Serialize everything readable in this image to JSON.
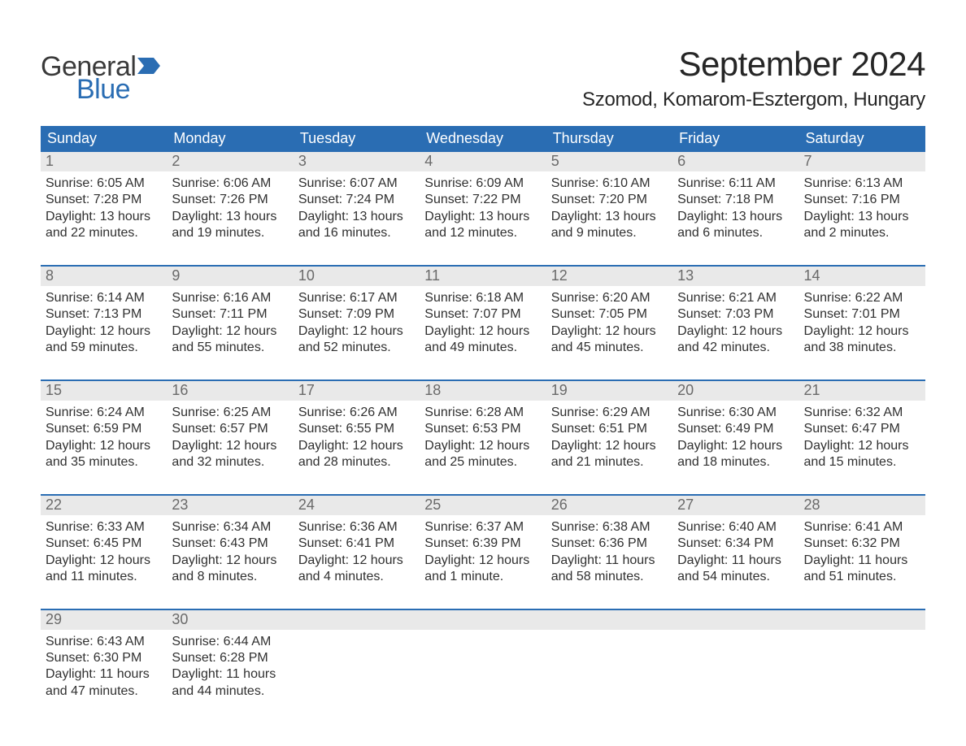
{
  "brand": {
    "general": "General",
    "blue": "Blue",
    "flag_color": "#2a6db3"
  },
  "title": "September 2024",
  "location": "Szomod, Komarom-Esztergom, Hungary",
  "colors": {
    "header_bg": "#2a6db3",
    "header_text": "#ffffff",
    "daynum_bg": "#e9e9e9",
    "daynum_text": "#6a6a6a",
    "body_text": "#303030",
    "rule": "#2a6db3",
    "page_bg": "#ffffff"
  },
  "typography": {
    "title_fontsize": 42,
    "location_fontsize": 24,
    "weekday_fontsize": 18,
    "daynum_fontsize": 18,
    "body_fontsize": 16,
    "font_family": "Arial"
  },
  "weekdays": [
    "Sunday",
    "Monday",
    "Tuesday",
    "Wednesday",
    "Thursday",
    "Friday",
    "Saturday"
  ],
  "weeks": [
    [
      {
        "n": "1",
        "sunrise": "Sunrise: 6:05 AM",
        "sunset": "Sunset: 7:28 PM",
        "d1": "Daylight: 13 hours",
        "d2": "and 22 minutes."
      },
      {
        "n": "2",
        "sunrise": "Sunrise: 6:06 AM",
        "sunset": "Sunset: 7:26 PM",
        "d1": "Daylight: 13 hours",
        "d2": "and 19 minutes."
      },
      {
        "n": "3",
        "sunrise": "Sunrise: 6:07 AM",
        "sunset": "Sunset: 7:24 PM",
        "d1": "Daylight: 13 hours",
        "d2": "and 16 minutes."
      },
      {
        "n": "4",
        "sunrise": "Sunrise: 6:09 AM",
        "sunset": "Sunset: 7:22 PM",
        "d1": "Daylight: 13 hours",
        "d2": "and 12 minutes."
      },
      {
        "n": "5",
        "sunrise": "Sunrise: 6:10 AM",
        "sunset": "Sunset: 7:20 PM",
        "d1": "Daylight: 13 hours",
        "d2": "and 9 minutes."
      },
      {
        "n": "6",
        "sunrise": "Sunrise: 6:11 AM",
        "sunset": "Sunset: 7:18 PM",
        "d1": "Daylight: 13 hours",
        "d2": "and 6 minutes."
      },
      {
        "n": "7",
        "sunrise": "Sunrise: 6:13 AM",
        "sunset": "Sunset: 7:16 PM",
        "d1": "Daylight: 13 hours",
        "d2": "and 2 minutes."
      }
    ],
    [
      {
        "n": "8",
        "sunrise": "Sunrise: 6:14 AM",
        "sunset": "Sunset: 7:13 PM",
        "d1": "Daylight: 12 hours",
        "d2": "and 59 minutes."
      },
      {
        "n": "9",
        "sunrise": "Sunrise: 6:16 AM",
        "sunset": "Sunset: 7:11 PM",
        "d1": "Daylight: 12 hours",
        "d2": "and 55 minutes."
      },
      {
        "n": "10",
        "sunrise": "Sunrise: 6:17 AM",
        "sunset": "Sunset: 7:09 PM",
        "d1": "Daylight: 12 hours",
        "d2": "and 52 minutes."
      },
      {
        "n": "11",
        "sunrise": "Sunrise: 6:18 AM",
        "sunset": "Sunset: 7:07 PM",
        "d1": "Daylight: 12 hours",
        "d2": "and 49 minutes."
      },
      {
        "n": "12",
        "sunrise": "Sunrise: 6:20 AM",
        "sunset": "Sunset: 7:05 PM",
        "d1": "Daylight: 12 hours",
        "d2": "and 45 minutes."
      },
      {
        "n": "13",
        "sunrise": "Sunrise: 6:21 AM",
        "sunset": "Sunset: 7:03 PM",
        "d1": "Daylight: 12 hours",
        "d2": "and 42 minutes."
      },
      {
        "n": "14",
        "sunrise": "Sunrise: 6:22 AM",
        "sunset": "Sunset: 7:01 PM",
        "d1": "Daylight: 12 hours",
        "d2": "and 38 minutes."
      }
    ],
    [
      {
        "n": "15",
        "sunrise": "Sunrise: 6:24 AM",
        "sunset": "Sunset: 6:59 PM",
        "d1": "Daylight: 12 hours",
        "d2": "and 35 minutes."
      },
      {
        "n": "16",
        "sunrise": "Sunrise: 6:25 AM",
        "sunset": "Sunset: 6:57 PM",
        "d1": "Daylight: 12 hours",
        "d2": "and 32 minutes."
      },
      {
        "n": "17",
        "sunrise": "Sunrise: 6:26 AM",
        "sunset": "Sunset: 6:55 PM",
        "d1": "Daylight: 12 hours",
        "d2": "and 28 minutes."
      },
      {
        "n": "18",
        "sunrise": "Sunrise: 6:28 AM",
        "sunset": "Sunset: 6:53 PM",
        "d1": "Daylight: 12 hours",
        "d2": "and 25 minutes."
      },
      {
        "n": "19",
        "sunrise": "Sunrise: 6:29 AM",
        "sunset": "Sunset: 6:51 PM",
        "d1": "Daylight: 12 hours",
        "d2": "and 21 minutes."
      },
      {
        "n": "20",
        "sunrise": "Sunrise: 6:30 AM",
        "sunset": "Sunset: 6:49 PM",
        "d1": "Daylight: 12 hours",
        "d2": "and 18 minutes."
      },
      {
        "n": "21",
        "sunrise": "Sunrise: 6:32 AM",
        "sunset": "Sunset: 6:47 PM",
        "d1": "Daylight: 12 hours",
        "d2": "and 15 minutes."
      }
    ],
    [
      {
        "n": "22",
        "sunrise": "Sunrise: 6:33 AM",
        "sunset": "Sunset: 6:45 PM",
        "d1": "Daylight: 12 hours",
        "d2": "and 11 minutes."
      },
      {
        "n": "23",
        "sunrise": "Sunrise: 6:34 AM",
        "sunset": "Sunset: 6:43 PM",
        "d1": "Daylight: 12 hours",
        "d2": "and 8 minutes."
      },
      {
        "n": "24",
        "sunrise": "Sunrise: 6:36 AM",
        "sunset": "Sunset: 6:41 PM",
        "d1": "Daylight: 12 hours",
        "d2": "and 4 minutes."
      },
      {
        "n": "25",
        "sunrise": "Sunrise: 6:37 AM",
        "sunset": "Sunset: 6:39 PM",
        "d1": "Daylight: 12 hours",
        "d2": "and 1 minute."
      },
      {
        "n": "26",
        "sunrise": "Sunrise: 6:38 AM",
        "sunset": "Sunset: 6:36 PM",
        "d1": "Daylight: 11 hours",
        "d2": "and 58 minutes."
      },
      {
        "n": "27",
        "sunrise": "Sunrise: 6:40 AM",
        "sunset": "Sunset: 6:34 PM",
        "d1": "Daylight: 11 hours",
        "d2": "and 54 minutes."
      },
      {
        "n": "28",
        "sunrise": "Sunrise: 6:41 AM",
        "sunset": "Sunset: 6:32 PM",
        "d1": "Daylight: 11 hours",
        "d2": "and 51 minutes."
      }
    ],
    [
      {
        "n": "29",
        "sunrise": "Sunrise: 6:43 AM",
        "sunset": "Sunset: 6:30 PM",
        "d1": "Daylight: 11 hours",
        "d2": "and 47 minutes."
      },
      {
        "n": "30",
        "sunrise": "Sunrise: 6:44 AM",
        "sunset": "Sunset: 6:28 PM",
        "d1": "Daylight: 11 hours",
        "d2": "and 44 minutes."
      },
      {
        "empty": true
      },
      {
        "empty": true
      },
      {
        "empty": true
      },
      {
        "empty": true
      },
      {
        "empty": true
      }
    ]
  ]
}
